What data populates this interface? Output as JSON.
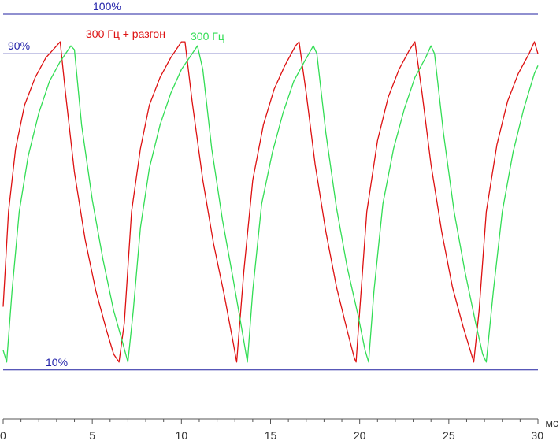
{
  "chart_data": {
    "type": "line",
    "x_unit": "мс",
    "xlim": [
      0,
      30
    ],
    "ylim": [
      0,
      100
    ],
    "x_ticks": [
      0,
      5,
      10,
      15,
      20,
      25,
      30
    ],
    "x_tick_labels": [
      "0",
      "5",
      "10",
      "15",
      "20",
      "25",
      "30"
    ],
    "minor_tick_step": 1,
    "reference_lines": [
      {
        "label": "100%",
        "value": 100
      },
      {
        "label": "90%",
        "value": 90
      },
      {
        "label": "10%",
        "value": 10
      }
    ],
    "series": [
      {
        "name": "300 Гц + разгон",
        "color": "#dd1111",
        "points": [
          [
            0.0,
            26
          ],
          [
            0.3,
            50
          ],
          [
            0.7,
            66
          ],
          [
            1.2,
            77
          ],
          [
            1.8,
            84
          ],
          [
            2.4,
            89
          ],
          [
            3.0,
            92
          ],
          [
            3.2,
            93
          ],
          [
            3.5,
            80
          ],
          [
            4.0,
            60
          ],
          [
            4.6,
            43
          ],
          [
            5.2,
            30
          ],
          [
            5.8,
            20
          ],
          [
            6.2,
            14
          ],
          [
            6.5,
            12
          ],
          [
            6.8,
            22
          ],
          [
            7.2,
            50
          ],
          [
            7.7,
            66
          ],
          [
            8.2,
            77
          ],
          [
            8.8,
            84
          ],
          [
            9.4,
            89
          ],
          [
            10.0,
            93
          ],
          [
            10.2,
            93
          ],
          [
            10.6,
            78
          ],
          [
            11.2,
            58
          ],
          [
            11.8,
            42
          ],
          [
            12.4,
            29
          ],
          [
            12.9,
            17
          ],
          [
            13.1,
            12
          ],
          [
            13.5,
            35
          ],
          [
            14.0,
            58
          ],
          [
            14.6,
            72
          ],
          [
            15.2,
            81
          ],
          [
            15.8,
            87
          ],
          [
            16.4,
            92
          ],
          [
            16.6,
            93
          ],
          [
            17.0,
            80
          ],
          [
            17.5,
            62
          ],
          [
            18.1,
            45
          ],
          [
            18.7,
            31
          ],
          [
            19.3,
            20
          ],
          [
            19.7,
            13
          ],
          [
            19.8,
            12
          ],
          [
            20.0,
            25
          ],
          [
            20.4,
            50
          ],
          [
            21.0,
            68
          ],
          [
            21.6,
            79
          ],
          [
            22.2,
            86
          ],
          [
            22.8,
            91
          ],
          [
            23.1,
            93
          ],
          [
            23.5,
            80
          ],
          [
            24.0,
            62
          ],
          [
            24.6,
            45
          ],
          [
            25.2,
            31
          ],
          [
            25.8,
            21
          ],
          [
            26.2,
            15
          ],
          [
            26.4,
            12
          ],
          [
            26.7,
            25
          ],
          [
            27.1,
            50
          ],
          [
            27.7,
            67
          ],
          [
            28.3,
            78
          ],
          [
            28.9,
            85
          ],
          [
            29.5,
            90
          ],
          [
            29.8,
            93
          ],
          [
            30.0,
            90
          ]
        ]
      },
      {
        "name": "300 Гц",
        "color": "#33dd55",
        "points": [
          [
            0.0,
            15
          ],
          [
            0.2,
            12
          ],
          [
            0.5,
            30
          ],
          [
            0.9,
            50
          ],
          [
            1.4,
            64
          ],
          [
            2.0,
            75
          ],
          [
            2.6,
            83
          ],
          [
            3.2,
            88
          ],
          [
            3.8,
            92
          ],
          [
            4.0,
            91
          ],
          [
            4.4,
            72
          ],
          [
            5.0,
            53
          ],
          [
            5.6,
            38
          ],
          [
            6.2,
            25
          ],
          [
            6.7,
            17
          ],
          [
            7.0,
            12
          ],
          [
            7.3,
            25
          ],
          [
            7.7,
            46
          ],
          [
            8.2,
            61
          ],
          [
            8.8,
            72
          ],
          [
            9.4,
            80
          ],
          [
            10.0,
            86
          ],
          [
            10.6,
            90
          ],
          [
            10.9,
            92
          ],
          [
            11.2,
            86
          ],
          [
            11.7,
            66
          ],
          [
            12.3,
            48
          ],
          [
            12.9,
            33
          ],
          [
            13.4,
            20
          ],
          [
            13.7,
            12
          ],
          [
            14.0,
            30
          ],
          [
            14.5,
            52
          ],
          [
            15.1,
            65
          ],
          [
            15.7,
            75
          ],
          [
            16.3,
            83
          ],
          [
            16.9,
            88
          ],
          [
            17.4,
            92
          ],
          [
            17.6,
            90
          ],
          [
            18.1,
            70
          ],
          [
            18.7,
            51
          ],
          [
            19.3,
            36
          ],
          [
            19.9,
            24
          ],
          [
            20.3,
            15
          ],
          [
            20.5,
            12
          ],
          [
            20.8,
            30
          ],
          [
            21.3,
            52
          ],
          [
            21.9,
            66
          ],
          [
            22.5,
            76
          ],
          [
            23.1,
            84
          ],
          [
            23.7,
            89
          ],
          [
            24.0,
            92
          ],
          [
            24.2,
            90
          ],
          [
            24.7,
            70
          ],
          [
            25.3,
            50
          ],
          [
            25.9,
            35
          ],
          [
            26.5,
            22
          ],
          [
            26.9,
            14
          ],
          [
            27.1,
            12
          ],
          [
            27.5,
            30
          ],
          [
            28.0,
            50
          ],
          [
            28.6,
            65
          ],
          [
            29.2,
            76
          ],
          [
            29.8,
            85
          ],
          [
            30.0,
            87
          ]
        ]
      }
    ]
  }
}
